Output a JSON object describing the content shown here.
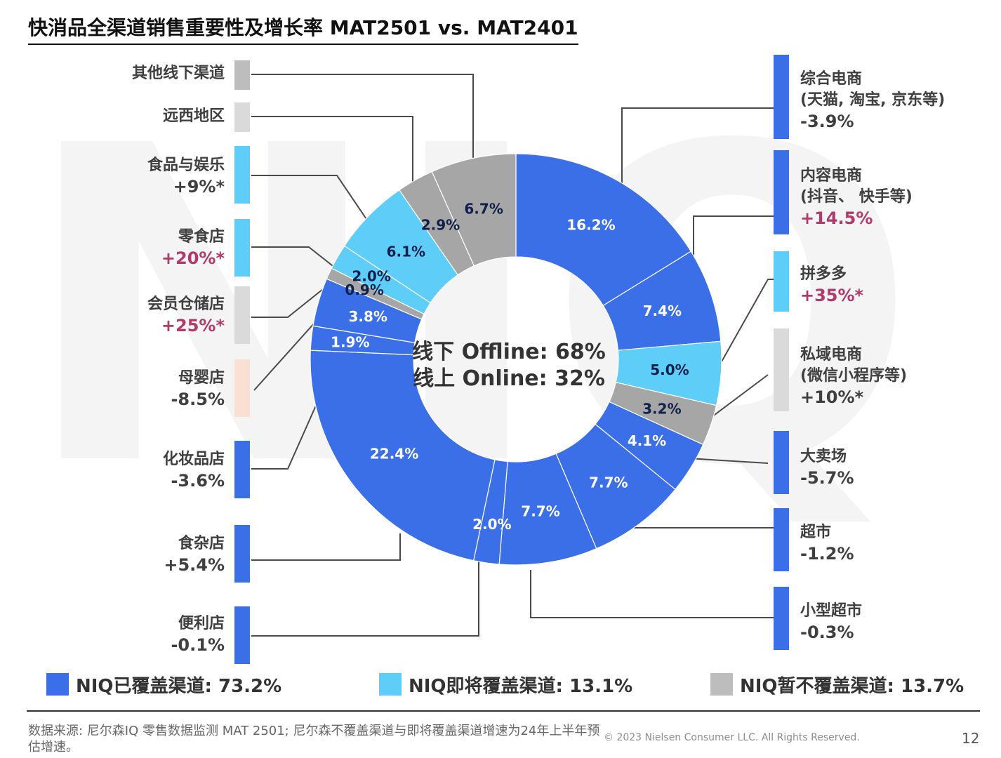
{
  "title": "快消品全渠道销售重要性及增长率 MAT2501 vs. MAT2401",
  "colors": {
    "covered": "#3A6FE8",
    "upcoming": "#5ECDF8",
    "not_covered": "#A6A6A6",
    "not_covered_light": "#DADADA",
    "maternal": "#F9E0D3",
    "growth_positive_highlight": "#B03A6A"
  },
  "left_channels": [
    {
      "name": "其他线下渠道",
      "growth": ""
    },
    {
      "name": "远西地区",
      "growth": ""
    },
    {
      "name": "食品与娱乐",
      "growth": "+9%*"
    },
    {
      "name": "零食店",
      "growth": "+20%*"
    },
    {
      "name": "会员仓储店",
      "growth": "+25%*"
    },
    {
      "name": "母婴店",
      "growth": "-8.5%"
    },
    {
      "name": "化妆品店",
      "growth": "-3.6%"
    },
    {
      "name": "食杂店",
      "growth": "+5.4%"
    },
    {
      "name": "便利店",
      "growth": "-0.1%"
    }
  ],
  "right_channels": [
    {
      "name": "综合电商",
      "sub": "(天猫, 淘宝, 京东等)",
      "growth": "-3.9%"
    },
    {
      "name": "内容电商",
      "sub": "(抖音、 快手等)",
      "growth": "+14.5%"
    },
    {
      "name": "拼多多",
      "sub": "",
      "growth": "+35%*"
    },
    {
      "name": "私域电商",
      "sub": "(微信小程序等)",
      "growth": "+10%*"
    },
    {
      "name": "大卖场",
      "sub": "",
      "growth": "-5.7%"
    },
    {
      "name": "超市",
      "sub": "",
      "growth": "-1.2%"
    },
    {
      "name": "小型超市",
      "sub": "",
      "growth": "-0.3%"
    }
  ],
  "center": {
    "line1": "线下 Offline: 68%",
    "line2": "线上 Online: 32%"
  },
  "legend": [
    {
      "label": "NIQ已覆盖渠道: 73.2%",
      "color": "#3A6FE8"
    },
    {
      "label": "NIQ即将覆盖渠道: 13.1%",
      "color": "#5ECDF8"
    },
    {
      "label": "NIQ暂不覆盖渠道: 13.7%",
      "color": "#A6A6A6"
    }
  ],
  "footer": {
    "source": "数据来源: 尼尔森IQ 零售数据监测 MAT 2501; 尼尔森不覆盖渠道与即将覆盖渠道增速为24年上半年预估增速。",
    "copyright": "© 2023 Nielsen Consumer LLC. All Rights Reserved.",
    "page": "12"
  },
  "watermark": "NIQ",
  "chart_data": {
    "type": "pie",
    "title": "快消品全渠道销售重要性及增长率 MAT2501 vs. MAT2401",
    "unit": "%",
    "slices": [
      {
        "label": "综合电商",
        "value": 16.2,
        "growth": "-3.9%",
        "coverage": "covered"
      },
      {
        "label": "内容电商",
        "value": 7.4,
        "growth": "+14.5%",
        "coverage": "covered"
      },
      {
        "label": "拼多多",
        "value": 5.0,
        "growth": "+35%*",
        "coverage": "upcoming"
      },
      {
        "label": "私域电商",
        "value": 3.2,
        "growth": "+10%*",
        "coverage": "not_covered"
      },
      {
        "label": "大卖场",
        "value": 4.1,
        "growth": "-5.7%",
        "coverage": "covered"
      },
      {
        "label": "超市",
        "value": 7.7,
        "growth": "-1.2%",
        "coverage": "covered"
      },
      {
        "label": "小型超市",
        "value": 7.7,
        "growth": "-0.3%",
        "coverage": "covered"
      },
      {
        "label": "便利店",
        "value": 2.0,
        "growth": "-0.1%",
        "coverage": "covered"
      },
      {
        "label": "食杂店",
        "value": 22.4,
        "growth": "+5.4%",
        "coverage": "covered"
      },
      {
        "label": "化妆品店",
        "value": 1.9,
        "growth": "-3.6%",
        "coverage": "covered"
      },
      {
        "label": "母婴店",
        "value": 3.8,
        "growth": "-8.5%",
        "coverage": "covered"
      },
      {
        "label": "会员仓储店",
        "value": 0.9,
        "growth": "+25%*",
        "coverage": "not_covered"
      },
      {
        "label": "零食店",
        "value": 2.0,
        "growth": "+20%*",
        "coverage": "upcoming"
      },
      {
        "label": "食品与娱乐",
        "value": 6.1,
        "growth": "+9%*",
        "coverage": "upcoming"
      },
      {
        "label": "远西地区",
        "value": 2.9,
        "growth": "",
        "coverage": "not_covered"
      },
      {
        "label": "其他线下渠道",
        "value": 6.7,
        "growth": "",
        "coverage": "not_covered"
      }
    ],
    "summary": {
      "offline": 68,
      "online": 32
    },
    "legend_position": "bottom"
  }
}
